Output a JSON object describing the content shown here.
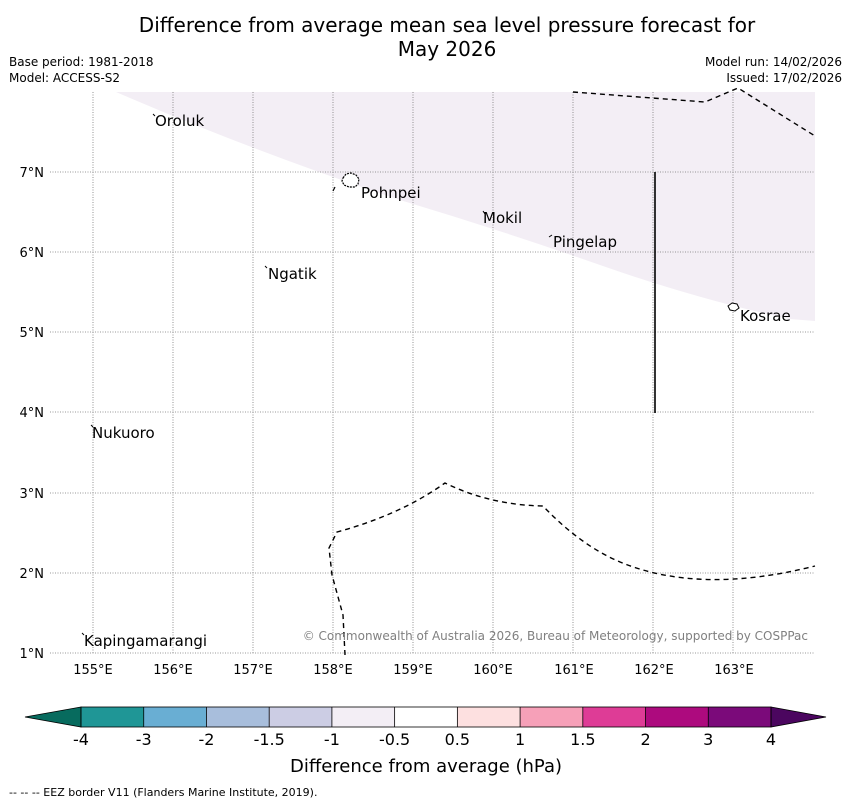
{
  "title": {
    "line1": "Difference from average mean sea level pressure forecast for",
    "line2": "May 2026"
  },
  "meta": {
    "base_period": "Base period: 1981-2018",
    "model": "Model: ACCESS-S2",
    "model_run": "Model run: 14/02/2026",
    "issued": "Issued: 17/02/2026"
  },
  "map": {
    "lat_labels": [
      "7°N",
      "6°N",
      "5°N",
      "4°N",
      "3°N",
      "2°N",
      "1°N"
    ],
    "lon_labels": [
      "155°E",
      "156°E",
      "157°E",
      "158°E",
      "159°E",
      "160°E",
      "161°E",
      "162°E",
      "163°E"
    ],
    "places": [
      {
        "name": "Oroluk"
      },
      {
        "name": "Pohnpei"
      },
      {
        "name": "Mokil"
      },
      {
        "name": "Pingelap"
      },
      {
        "name": "Ngatik"
      },
      {
        "name": "Kosrae"
      },
      {
        "name": "Nukuoro"
      },
      {
        "name": "Kapingamarangi"
      }
    ],
    "copyright": "© Commonwealth of Australia 2026, Bureau of Meteorology, supported by COSPPac"
  },
  "colorbar": {
    "title": "Difference from average (hPa)",
    "tick_labels": [
      "-4",
      "-3",
      "-2",
      "-1.5",
      "-1",
      "-0.5",
      "0.5",
      "1",
      "1.5",
      "2",
      "3",
      "4"
    ],
    "colors": [
      "#1f9696",
      "#69aed3",
      "#a8bedc",
      "#cccde4",
      "#f3eef5",
      "#ffffff",
      "#fde0e0",
      "#f6a0b8",
      "#de3c96",
      "#ad0a7e",
      "#7b0a7a"
    ],
    "under_color": "#076b5e",
    "over_color": "#4b065f",
    "region_fill": "#f3eef5"
  },
  "footer": "--  --  -- EEZ border V11 (Flanders Marine Institute, 2019)."
}
